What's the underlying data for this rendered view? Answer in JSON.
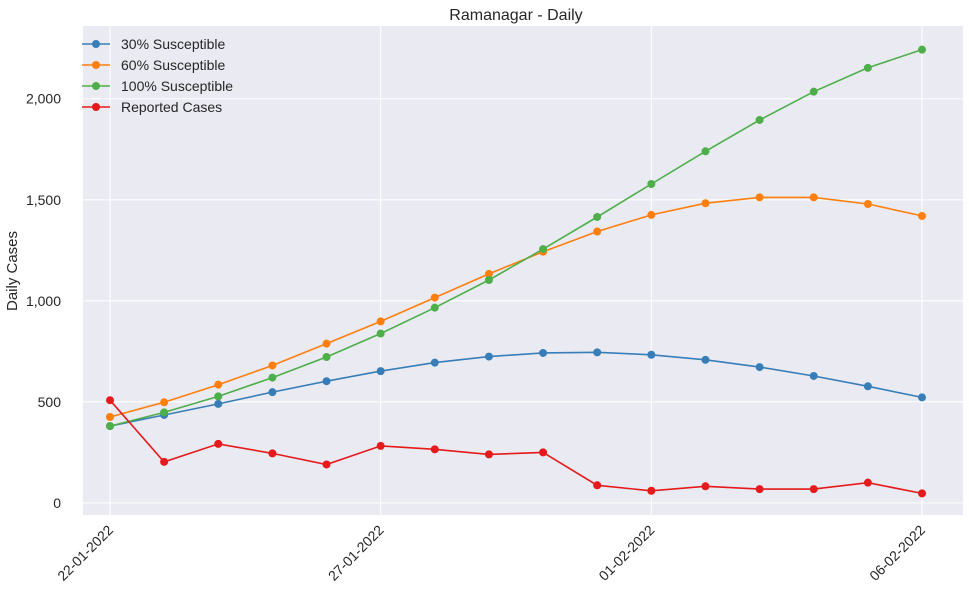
{
  "chart_data": {
    "type": "line",
    "title": "Ramanagar - Daily",
    "xlabel": "",
    "ylabel": "Daily Cases",
    "x": [
      "22-01-2022",
      "23-01-2022",
      "24-01-2022",
      "25-01-2022",
      "26-01-2022",
      "27-01-2022",
      "28-01-2022",
      "29-01-2022",
      "30-01-2022",
      "31-01-2022",
      "01-02-2022",
      "02-02-2022",
      "03-02-2022",
      "04-02-2022",
      "05-02-2022",
      "06-02-2022"
    ],
    "xticks": [
      "22-01-2022",
      "27-01-2022",
      "01-02-2022",
      "06-02-2022"
    ],
    "yticks": [
      0,
      500,
      1000,
      1500,
      2000
    ],
    "ytick_labels": [
      "0",
      "500",
      "1,000",
      "1,500",
      "2,000"
    ],
    "ylim": [
      -60,
      2360
    ],
    "grid": true,
    "legend_position": "top-left",
    "series": [
      {
        "name": "30% Susceptible",
        "color": "#377eb8",
        "values": [
          380,
          435,
          490,
          548,
          602,
          652,
          694,
          724,
          742,
          745,
          733,
          708,
          672,
          628,
          577,
          522
        ]
      },
      {
        "name": "60% Susceptible",
        "color": "#ff7f0e",
        "values": [
          425,
          498,
          585,
          680,
          788,
          898,
          1016,
          1133,
          1243,
          1343,
          1425,
          1483,
          1512,
          1512,
          1479,
          1420
        ]
      },
      {
        "name": "100% Susceptible",
        "color": "#4daf4a",
        "values": [
          380,
          448,
          527,
          620,
          722,
          838,
          966,
          1103,
          1256,
          1415,
          1578,
          1740,
          1895,
          2035,
          2153,
          2243
        ]
      },
      {
        "name": "Reported Cases",
        "color": "#e41a1c",
        "values": [
          508,
          203,
          292,
          245,
          190,
          282,
          265,
          240,
          250,
          87,
          60,
          82,
          68,
          68,
          100,
          47
        ]
      }
    ]
  }
}
